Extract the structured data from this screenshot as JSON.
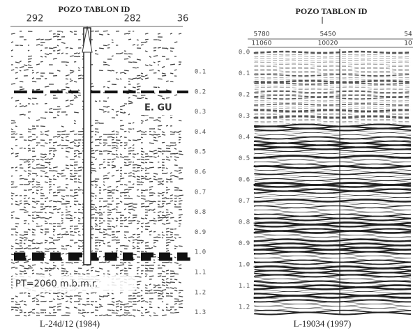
{
  "left_panel": {
    "title": "POZO TABLON ID",
    "top_labels": [
      "292",
      "282",
      "36"
    ],
    "time_labels": [
      "0.1",
      "0.2",
      "0.3",
      "0.4",
      "0.5",
      "0.6",
      "0.7",
      "0.8",
      "0.9",
      "1.0",
      "1.1",
      "1.2",
      "1.3"
    ],
    "annotations": [
      "E. GU",
      "PT=2060 m.b.m.r."
    ],
    "caption": "L-24d/12 (1984)"
  },
  "right_panel": {
    "title": "POZO TABLON ID",
    "top_labels_row1": [
      "5780",
      "5450",
      "54"
    ],
    "top_labels_row2": [
      "11060",
      "10020",
      "10"
    ],
    "time_labels": [
      "0.0",
      "0.1",
      "0.2",
      "0.3",
      "0.4",
      "0.5",
      "0.6",
      "0.7",
      "0.8",
      "0.9",
      "1.0",
      "1.1",
      "1.2"
    ],
    "caption": "L-19034 (1997)"
  }
}
